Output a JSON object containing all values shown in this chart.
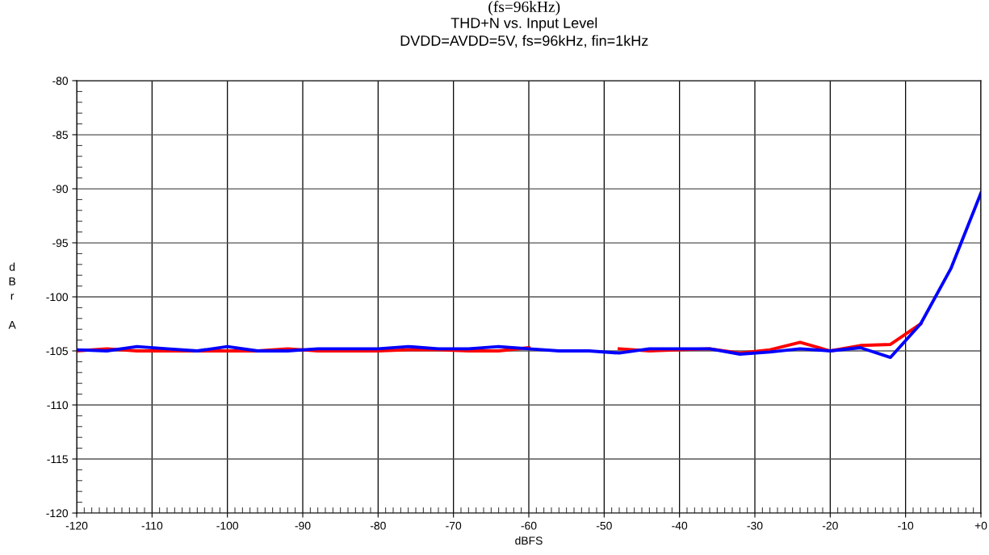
{
  "chart_data": {
    "type": "line",
    "title": "THD+N vs. Input Level",
    "subtitle": "DVDD=AVDD=5V, fs=96kHz, fin=1kHz",
    "annotations": [
      "(fs=96kHz)"
    ],
    "xlabel": "dBFS",
    "ylabel": "dBr A",
    "x": [
      -120,
      -116,
      -112,
      -108,
      -104,
      -100,
      -96,
      -92,
      -88,
      -84,
      -80,
      -76,
      -72,
      -68,
      -64,
      -60,
      -56,
      -52,
      -48,
      -44,
      -40,
      -36,
      -32,
      -28,
      -24,
      -20,
      -16,
      -12,
      -8,
      -4,
      0
    ],
    "series": [
      {
        "color": "#ff0000",
        "values": [
          -105,
          -104.8,
          -105,
          -105,
          -105,
          -105,
          -105,
          -104.8,
          -105,
          -105,
          -105,
          -104.9,
          -104.9,
          -105,
          -105,
          -104.7,
          null,
          null,
          -104.8,
          -105,
          -104.9,
          -104.8,
          -105.2,
          -104.9,
          -104.2,
          -105,
          -104.5,
          -104.4,
          -102.5,
          null,
          null
        ]
      },
      {
        "color": "#0000ff",
        "values": [
          -104.9,
          -105,
          -104.6,
          -104.8,
          -105,
          -104.6,
          -105,
          -105,
          -104.8,
          -104.8,
          -104.8,
          -104.6,
          -104.8,
          -104.8,
          -104.6,
          -104.8,
          -105,
          -105,
          -105.2,
          -104.8,
          -104.8,
          -104.8,
          -105.3,
          -105.1,
          -104.8,
          -105,
          -104.7,
          -105.6,
          -102.5,
          -97.4,
          -90.4
        ]
      }
    ],
    "xlim": [
      -120,
      0
    ],
    "xticks": [
      -120,
      -110,
      -100,
      -90,
      -80,
      -70,
      -60,
      -50,
      -40,
      -30,
      -20,
      -10,
      {
        "value": 0,
        "label": "+0"
      }
    ],
    "ylim": [
      -120,
      -80
    ],
    "yticks": [
      -120,
      -115,
      -110,
      -105,
      -100,
      -95,
      -90,
      -85,
      -80
    ],
    "grid": true,
    "line_style": "solid",
    "marker": "none"
  }
}
